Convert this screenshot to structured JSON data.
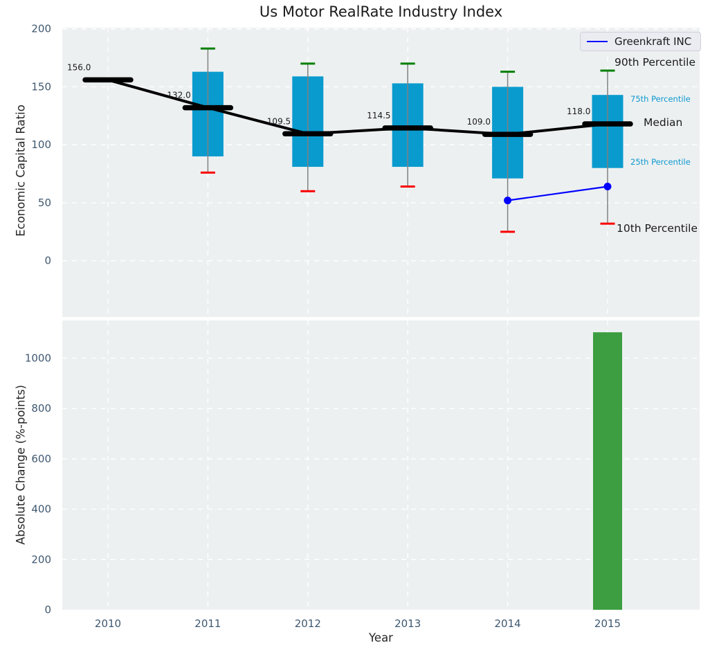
{
  "chart_data": [
    {
      "type": "boxplot-percentiles-with-line",
      "title": "Us Motor RealRate Industry Index",
      "ylabel": "Economic Capital Ratio",
      "ylim": [
        -48.5,
        201
      ],
      "yticks": [
        0,
        50,
        100,
        150,
        200
      ],
      "grid": true,
      "categories": [
        "2010",
        "2011",
        "2012",
        "2013",
        "2014",
        "2015"
      ],
      "percentiles": {
        "p10": [
          null,
          76,
          60,
          64,
          25,
          32
        ],
        "p25": [
          null,
          90,
          81,
          81,
          71,
          80
        ],
        "median": [
          156.0,
          132.0,
          109.5,
          114.5,
          109.0,
          118.0
        ],
        "p75": [
          null,
          163,
          159,
          153,
          150,
          143
        ],
        "p90": [
          null,
          183,
          170,
          170,
          163,
          164
        ]
      },
      "median_labels": [
        "156.0",
        "132.0",
        "109.5",
        "114.5",
        "109.0",
        "118.0"
      ],
      "series": [
        {
          "name": "Greenkraft INC",
          "x": [
            "2014",
            "2015"
          ],
          "y": [
            52,
            64
          ],
          "color": "#0000ff"
        }
      ],
      "legend": {
        "position": "upper right"
      },
      "annotations": [
        {
          "text": "90th Percentile",
          "size": "large"
        },
        {
          "text": "75th Percentile",
          "size": "small"
        },
        {
          "text": "Median",
          "size": "large"
        },
        {
          "text": "25th Percentile",
          "size": "small"
        },
        {
          "text": "10th Percentile",
          "size": "large"
        }
      ],
      "colors": {
        "box": "#0a9bce",
        "median": "#000000",
        "p90_cap": "#007f00",
        "p10_cap": "#fa0000",
        "whisker": "#808080"
      }
    },
    {
      "type": "bar",
      "ylabel": "Absolute Change (%-points)",
      "xlabel": "Year",
      "ylim": [
        0,
        1150
      ],
      "yticks": [
        0,
        200,
        400,
        600,
        800,
        1000
      ],
      "grid": true,
      "categories": [
        "2010",
        "2011",
        "2012",
        "2013",
        "2014",
        "2015"
      ],
      "values": [
        0,
        0,
        0,
        0,
        0,
        1103
      ],
      "bar_color": "#3c9e40"
    }
  ],
  "style": {
    "panel_bg": "#edf0f1",
    "grid_color": "#ffffff",
    "tick_label_color": "#3f5870",
    "annotation_small_color": "#0d99cf"
  }
}
